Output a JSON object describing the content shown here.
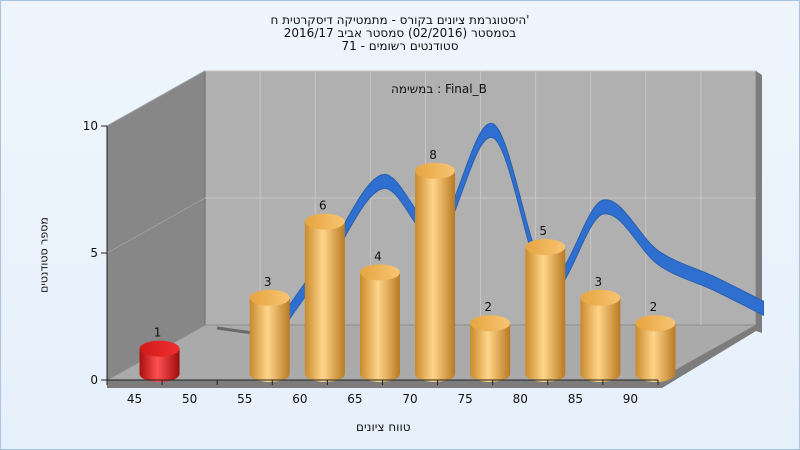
{
  "chart_data": {
    "type": "bar",
    "title_lines": [
      "היסטוגרמת ציונים בקורס - מתמטיקה דיסקרטית ח'",
      "בסמסטר  (02/2016)  סמסטר אביב 2016/17",
      "סטודנטים רשומים - 71"
    ],
    "task_label": "במשימה : Final_B",
    "xlabel": "טווח ציונים",
    "ylabel": "מספר סטודנטים",
    "ylim": [
      0,
      10
    ],
    "yticks": [
      0,
      5,
      10
    ],
    "xticks": [
      "45",
      "50",
      "55",
      "60",
      "65",
      "70",
      "75",
      "80",
      "85",
      "90"
    ],
    "bars": [
      {
        "x": "45",
        "value": 1,
        "color": "#e41a1a"
      },
      {
        "x": "55",
        "value": 3,
        "color": "#f0a840"
      },
      {
        "x": "60",
        "value": 6,
        "color": "#f0a840"
      },
      {
        "x": "65",
        "value": 4,
        "color": "#f0a840"
      },
      {
        "x": "70",
        "value": 8,
        "color": "#f0a840"
      },
      {
        "x": "75",
        "value": 2,
        "color": "#f0a840"
      },
      {
        "x": "80",
        "value": 5,
        "color": "#f0a840"
      },
      {
        "x": "85",
        "value": 3,
        "color": "#f0a840"
      },
      {
        "x": "90",
        "value": 2,
        "color": "#f0a840"
      }
    ],
    "curve": {
      "color": "#2f6fcf"
    },
    "grid": true,
    "wall_colors": {
      "back": "#b0b0b0",
      "left": "#878787",
      "floor": "#aaaaaa"
    }
  }
}
